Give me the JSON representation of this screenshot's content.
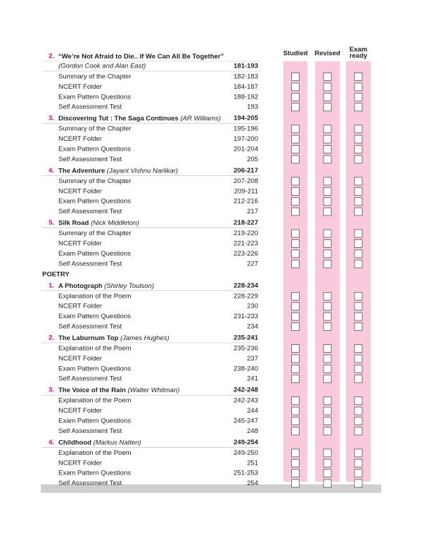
{
  "columns": [
    "Studied",
    "Revised",
    "Exam ready"
  ],
  "prose": [
    {
      "number": "2.",
      "title": "“We’re Not Afraid to Die.. If We Can All Be Together”",
      "author_line": "(Gordon Cook and Alan East)",
      "pages": "181-193",
      "items": [
        {
          "label": "Summary of the Chapter",
          "pages": "182-183"
        },
        {
          "label": "NCERT Folder",
          "pages": "184-187"
        },
        {
          "label": "Exam Pattern Questions",
          "pages": "188-192"
        },
        {
          "label": "Self Assessment Test",
          "pages": "193"
        }
      ]
    },
    {
      "number": "3.",
      "title": "Discovering Tut : The Saga Continues",
      "author": "(AR Williams)",
      "pages": "194-205",
      "items": [
        {
          "label": "Summary of the Chapter",
          "pages": "195-196"
        },
        {
          "label": "NCERT Folder",
          "pages": "197-200"
        },
        {
          "label": "Exam Pattern Questions",
          "pages": "201-204"
        },
        {
          "label": "Self Assessment Test",
          "pages": "205"
        }
      ]
    },
    {
      "number": "4.",
      "title": "The Adventure",
      "author": "(Jayant Vishnu Narlikar)",
      "pages": "206-217",
      "items": [
        {
          "label": "Summary of the Chapter",
          "pages": "207-208"
        },
        {
          "label": "NCERT Folder",
          "pages": "209-211"
        },
        {
          "label": "Exam Pattern Questions",
          "pages": "212-216"
        },
        {
          "label": "Self Assessment Test",
          "pages": "217"
        }
      ]
    },
    {
      "number": "5.",
      "title": "Silk Road",
      "author": "(Nick Middleton)",
      "pages": "218-227",
      "items": [
        {
          "label": "Summary of the Chapter",
          "pages": "219-220"
        },
        {
          "label": "NCERT Folder",
          "pages": "221-223"
        },
        {
          "label": "Exam Pattern Questions",
          "pages": "223-226"
        },
        {
          "label": "Self Assessment Test",
          "pages": "227"
        }
      ]
    }
  ],
  "poetry_heading": "POETRY",
  "poetry": [
    {
      "number": "1.",
      "title": "A Photograph",
      "author": "(Shirley Toulson)",
      "pages": "228-234",
      "items": [
        {
          "label": "Explanation of the Poem",
          "pages": "228-229"
        },
        {
          "label": "NCERT Folder",
          "pages": "230"
        },
        {
          "label": "Exam Pattern Questions",
          "pages": "231-233"
        },
        {
          "label": "Self Assessment Test",
          "pages": "234"
        }
      ]
    },
    {
      "number": "2.",
      "title": "The Laburnum Top",
      "author": "(James Hughes)",
      "pages": "235-241",
      "items": [
        {
          "label": "Explanation of the Poem",
          "pages": "235-236"
        },
        {
          "label": "NCERT Folder",
          "pages": "237"
        },
        {
          "label": "Exam Pattern Questions",
          "pages": "238-240"
        },
        {
          "label": "Self Assessment Test",
          "pages": "241"
        }
      ]
    },
    {
      "number": "3.",
      "title": "The Voice of the Rain",
      "author": "(Walter Whitman)",
      "pages": "242-248",
      "items": [
        {
          "label": "Explanation of the Poem",
          "pages": "242-243"
        },
        {
          "label": "NCERT Folder",
          "pages": "244"
        },
        {
          "label": "Exam Pattern Questions",
          "pages": "245-247"
        },
        {
          "label": "Self Assessment Test",
          "pages": "248"
        }
      ]
    },
    {
      "number": "4.",
      "title": "Childhood",
      "author": "(Markus Natten)",
      "pages": "249-254",
      "items": [
        {
          "label": "Explanation of the Poem",
          "pages": "249-250"
        },
        {
          "label": "NCERT Folder",
          "pages": "251"
        },
        {
          "label": "Exam Pattern Questions",
          "pages": "251-253"
        },
        {
          "label": "Self Assessment Test",
          "pages": "254"
        }
      ]
    }
  ]
}
